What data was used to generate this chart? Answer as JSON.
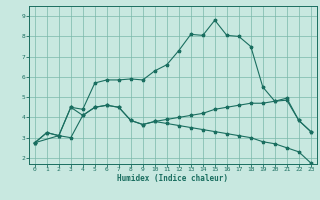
{
  "title": "",
  "xlabel": "Humidex (Indice chaleur)",
  "ylabel": "",
  "xlim": [
    -0.5,
    23.5
  ],
  "ylim": [
    1.7,
    9.5
  ],
  "xticks": [
    0,
    1,
    2,
    3,
    4,
    5,
    6,
    7,
    8,
    9,
    10,
    11,
    12,
    13,
    14,
    15,
    16,
    17,
    18,
    19,
    20,
    21,
    22,
    23
  ],
  "yticks": [
    2,
    3,
    4,
    5,
    6,
    7,
    8,
    9
  ],
  "bg_color": "#c8e8e0",
  "grid_color": "#7ab8aa",
  "line_color": "#1a6e60",
  "line1_x": [
    0,
    1,
    2,
    3,
    4,
    5,
    6,
    7,
    8,
    9,
    10,
    11,
    12,
    13,
    14,
    15,
    16,
    17,
    18,
    19,
    20,
    21,
    22,
    23
  ],
  "line1_y": [
    2.75,
    3.25,
    3.1,
    4.5,
    4.4,
    5.7,
    5.85,
    5.85,
    5.9,
    5.85,
    6.3,
    6.6,
    7.3,
    8.1,
    8.05,
    8.8,
    8.05,
    8.0,
    7.5,
    5.5,
    4.8,
    4.95,
    3.85,
    3.3
  ],
  "line2_x": [
    0,
    1,
    2,
    3,
    4,
    5,
    6,
    7,
    8,
    9,
    10,
    11,
    12,
    13,
    14,
    15,
    16,
    17,
    18,
    19,
    20,
    21,
    22,
    23
  ],
  "line2_y": [
    2.75,
    3.25,
    3.1,
    4.5,
    4.1,
    4.5,
    4.6,
    4.5,
    3.85,
    3.65,
    3.8,
    3.9,
    4.0,
    4.1,
    4.2,
    4.4,
    4.5,
    4.6,
    4.7,
    4.7,
    4.8,
    4.85,
    3.85,
    3.3
  ],
  "line3_x": [
    0,
    2,
    3,
    4,
    5,
    6,
    7,
    8,
    9,
    10,
    11,
    12,
    13,
    14,
    15,
    16,
    17,
    18,
    19,
    20,
    21,
    22,
    23
  ],
  "line3_y": [
    2.75,
    3.1,
    3.0,
    4.1,
    4.5,
    4.6,
    4.5,
    3.85,
    3.65,
    3.8,
    3.7,
    3.6,
    3.5,
    3.4,
    3.3,
    3.2,
    3.1,
    3.0,
    2.8,
    2.7,
    2.5,
    2.3,
    1.75
  ]
}
